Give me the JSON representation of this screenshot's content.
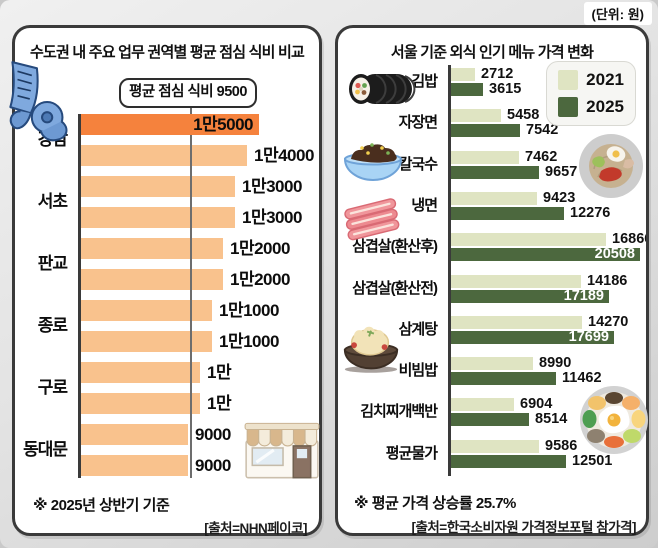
{
  "page": {
    "unit_note": "(단위: 원)"
  },
  "left_panel": {
    "title": "수도권 내 주요 업무 권역별 평균 점심 식비 비교",
    "avg_label": "평균 점심 식비 9500",
    "footnote": "※ 2025년 상반기 기준",
    "source": "[출처=NHN페이코]"
  },
  "right_panel": {
    "title": "서울 기준 외식 인기 메뉴 가격 변화",
    "legend": [
      {
        "label": "2021",
        "color": "#DFE4C2"
      },
      {
        "label": "2025",
        "color": "#4C683E"
      }
    ],
    "footnote": "※ 평균 가격 상승률 25.7%",
    "source": "[출처=한국소비자원 가격정보포털 참가격]"
  },
  "colors": {
    "bar_lunch": "#F9C28D",
    "bar_lunch_highlight": "#F5823D",
    "bar_2021": "#DFE4C2",
    "bar_2025": "#4C683E",
    "panel_border": "#3A3A3A",
    "page_background": "#E3E3E3",
    "receipt_blue": "#7FA9DE"
  },
  "icons": {
    "receipt-icon": "curled blue receipt",
    "storefront-icon": "small shop with striped awning",
    "gimbap-icon": "gimbap seaweed roll",
    "jajangmyeon-icon": "blue bowl of black bean noodles",
    "naengmyeon-icon": "cold noodle bowl with egg",
    "samgyeopsal-icon": "pork belly strips",
    "samgyetang-icon": "chicken soup in earthen pot",
    "bibimbap-icon": "bibimbap bowl with fried egg"
  },
  "chart_data": [
    {
      "type": "bar",
      "orientation": "horizontal",
      "title": "수도권 내 주요 업무 권역별 평균 점심 식비 비교",
      "xlim": [
        0,
        15000
      ],
      "reference_line": {
        "label": "평균 점심 식비 9500",
        "value": 9500
      },
      "categories": [
        "강남",
        "서초",
        "판교",
        "종로",
        "구로",
        "동대문"
      ],
      "bars": [
        {
          "category": "강남",
          "value": 15000,
          "label": "1만5000",
          "highlight": true,
          "label_inside": true
        },
        {
          "category": "강남",
          "value": 14000,
          "label": "1만4000",
          "highlight": false,
          "label_inside": false
        },
        {
          "category": "서초",
          "value": 13000,
          "label": "1만3000",
          "highlight": false,
          "label_inside": false
        },
        {
          "category": "서초",
          "value": 13000,
          "label": "1만3000",
          "highlight": false,
          "label_inside": false
        },
        {
          "category": "판교",
          "value": 12000,
          "label": "1만2000",
          "highlight": false,
          "label_inside": false
        },
        {
          "category": "판교",
          "value": 12000,
          "label": "1만2000",
          "highlight": false,
          "label_inside": false
        },
        {
          "category": "종로",
          "value": 11000,
          "label": "1만1000",
          "highlight": false,
          "label_inside": false
        },
        {
          "category": "종로",
          "value": 11000,
          "label": "1만1000",
          "highlight": false,
          "label_inside": false
        },
        {
          "category": "구로",
          "value": 10000,
          "label": "1만",
          "highlight": false,
          "label_inside": false
        },
        {
          "category": "구로",
          "value": 10000,
          "label": "1만",
          "highlight": false,
          "label_inside": false
        },
        {
          "category": "동대문",
          "value": 9000,
          "label": "9000",
          "highlight": false,
          "label_inside": false
        },
        {
          "category": "동대문",
          "value": 9000,
          "label": "9000",
          "highlight": false,
          "label_inside": false
        }
      ],
      "footnote": "※ 2025년 상반기 기준",
      "source": "[출처=NHN페이코]"
    },
    {
      "type": "bar",
      "orientation": "horizontal",
      "title": "서울 기준 외식 인기 메뉴 가격 변화",
      "unit": "원",
      "xlim": [
        0,
        20508
      ],
      "legend_position": "top-right",
      "categories": [
        "김밥",
        "자장면",
        "칼국수",
        "냉면",
        "삼겹살(환산후)",
        "삼겹살(환산전)",
        "삼계탕",
        "비빔밥",
        "김치찌개백반",
        "평균물가"
      ],
      "series": [
        {
          "name": "2021",
          "values": [
            2712,
            5458,
            7462,
            9423,
            16866,
            14186,
            14270,
            8990,
            6904,
            9586
          ],
          "label_inside": [
            false,
            false,
            false,
            false,
            false,
            false,
            false,
            false,
            false,
            false
          ]
        },
        {
          "name": "2025",
          "values": [
            3615,
            7542,
            9657,
            12276,
            20508,
            17189,
            17699,
            11462,
            8514,
            12501
          ],
          "label_inside": [
            false,
            false,
            false,
            false,
            true,
            true,
            true,
            false,
            false,
            false
          ]
        }
      ],
      "footnote": "※ 평균 가격 상승률 25.7%",
      "source": "[출처=한국소비자원 가격정보포털 참가격]"
    }
  ]
}
